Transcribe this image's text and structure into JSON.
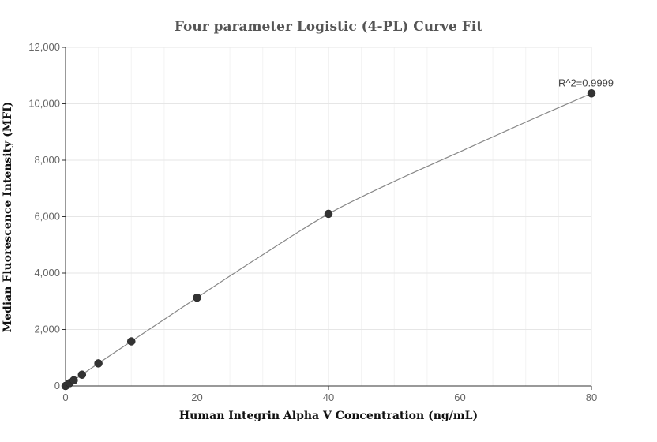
{
  "chart_data": {
    "type": "scatter",
    "title": "Four parameter Logistic (4-PL) Curve Fit",
    "xlabel": "Human Integrin Alpha V Concentration (ng/mL)",
    "ylabel": "Median Fluorescence Intensity (MFI)",
    "xlim": [
      0,
      80
    ],
    "ylim": [
      0,
      12000
    ],
    "x_ticks": [
      "0",
      "20",
      "40",
      "60",
      "80"
    ],
    "y_ticks": [
      "0",
      "2,000",
      "4,000",
      "6,000",
      "8,000",
      "10,000",
      "12,000"
    ],
    "x_tick_values": [
      0,
      20,
      40,
      60,
      80
    ],
    "y_tick_values": [
      0,
      2000,
      4000,
      6000,
      8000,
      10000,
      12000
    ],
    "grid": true,
    "legend": "none",
    "series": [
      {
        "points": [
          {
            "x": 0,
            "y": 0
          },
          {
            "x": 0.625,
            "y": 100
          },
          {
            "x": 1.25,
            "y": 200
          },
          {
            "x": 2.5,
            "y": 400
          },
          {
            "x": 5,
            "y": 800
          },
          {
            "x": 10,
            "y": 1580
          },
          {
            "x": 20,
            "y": 3130
          },
          {
            "x": 40,
            "y": 6100
          },
          {
            "x": 80,
            "y": 10370
          }
        ],
        "color": "#333333"
      }
    ],
    "fit_curve": {
      "model": "4-PL",
      "color": "#888888",
      "points": [
        {
          "x": 0,
          "y": 0
        },
        {
          "x": 5,
          "y": 800
        },
        {
          "x": 10,
          "y": 1580
        },
        {
          "x": 20,
          "y": 3130
        },
        {
          "x": 30,
          "y": 4650
        },
        {
          "x": 40,
          "y": 6100
        },
        {
          "x": 50,
          "y": 7250
        },
        {
          "x": 60,
          "y": 8300
        },
        {
          "x": 70,
          "y": 9350
        },
        {
          "x": 80,
          "y": 10370
        }
      ]
    },
    "annotations": [
      {
        "text": "R^2=0.9999",
        "x": 80,
        "y": 10370
      }
    ]
  }
}
